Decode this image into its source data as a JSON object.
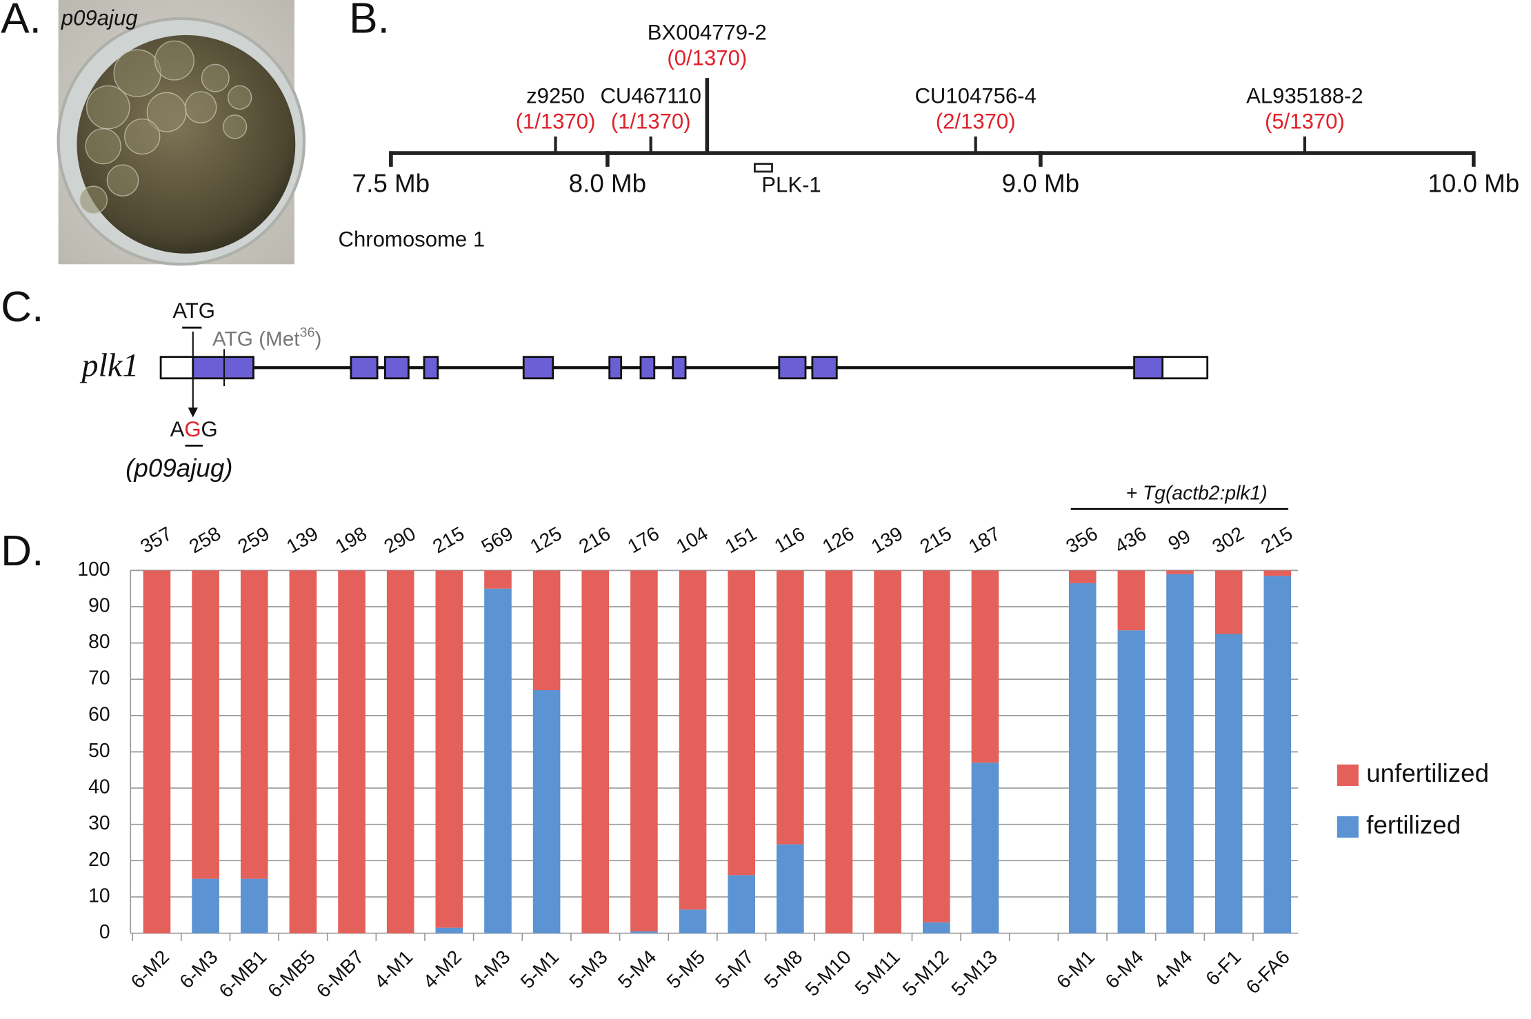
{
  "panels": [
    "A.",
    "B.",
    "C.",
    "D."
  ],
  "photo": {
    "label": "p09ajug"
  },
  "map": {
    "xlim": [
      7.5,
      10.0
    ],
    "ticks": [
      {
        "value": 7.5,
        "label": "7.5 Mb"
      },
      {
        "value": 8.0,
        "label": "8.0 Mb"
      },
      {
        "value": 9.0,
        "label": "9.0 Mb"
      },
      {
        "value": 10.0,
        "label": "10.0 Mb"
      }
    ],
    "markers": [
      {
        "name": "z9250",
        "count": "(1/1370)",
        "position": 7.88
      },
      {
        "name": "CU467110",
        "count": "(1/1370)",
        "position": 8.1
      },
      {
        "name": "BX004779-2",
        "count": "(0/1370)",
        "position": 8.23
      },
      {
        "name": "CU104756-4",
        "count": "(2/1370)",
        "position": 8.85
      },
      {
        "name": "AL935188-2",
        "count": "(5/1370)",
        "position": 9.61
      }
    ],
    "gene": {
      "name": "PLK-1",
      "start": 8.34,
      "end": 8.38
    },
    "chromosome": "Chromosome 1"
  },
  "gene_model": {
    "name": "plk1",
    "start_codon": "ATG",
    "alt_start": {
      "text": "ATG (Met",
      "sup": "36",
      "close": ")"
    },
    "mutant": [
      "A",
      "G",
      "G"
    ],
    "allele": "(p09ajug)"
  },
  "chart_data": {
    "type": "stacked_bar",
    "categories": [
      "6-M2",
      "6-M3",
      "6-MB1",
      "6-MB5",
      "6-MB7",
      "4-M1",
      "4-M2",
      "4-M3",
      "5-M1",
      "5-M3",
      "5-M4",
      "5-M5",
      "5-M7",
      "5-M8",
      "5-M10",
      "5-M11",
      "5-M12",
      "5-M13",
      null,
      "6-M1",
      "6-M4",
      "4-M4",
      "6-F1",
      "6-FA6"
    ],
    "sample_sizes": [
      357,
      258,
      259,
      139,
      198,
      290,
      215,
      569,
      125,
      216,
      176,
      104,
      151,
      116,
      126,
      139,
      215,
      187,
      null,
      356,
      436,
      99,
      302,
      215
    ],
    "series": [
      {
        "name": "fertilized",
        "color": "#5b93d3",
        "values": [
          0,
          15,
          15,
          0,
          0,
          0,
          1.5,
          95,
          67,
          0,
          0.5,
          6.5,
          16,
          24.5,
          0,
          0,
          3,
          47,
          null,
          96.5,
          83.5,
          99,
          82.5,
          98.5
        ]
      },
      {
        "name": "unfertilized",
        "color": "#e4605a",
        "values": [
          100,
          85,
          85,
          100,
          100,
          100,
          98.5,
          5,
          33,
          100,
          99.5,
          93.5,
          84,
          75.5,
          100,
          100,
          97,
          53,
          null,
          3.5,
          16.5,
          1,
          17.5,
          1.5
        ]
      }
    ],
    "ylim": [
      0,
      100
    ],
    "yticks": [
      0,
      10,
      20,
      30,
      40,
      50,
      60,
      70,
      80,
      90,
      100
    ],
    "grid": true,
    "annotation": "+ Tg(actb2:plk1)",
    "legend": "right"
  }
}
